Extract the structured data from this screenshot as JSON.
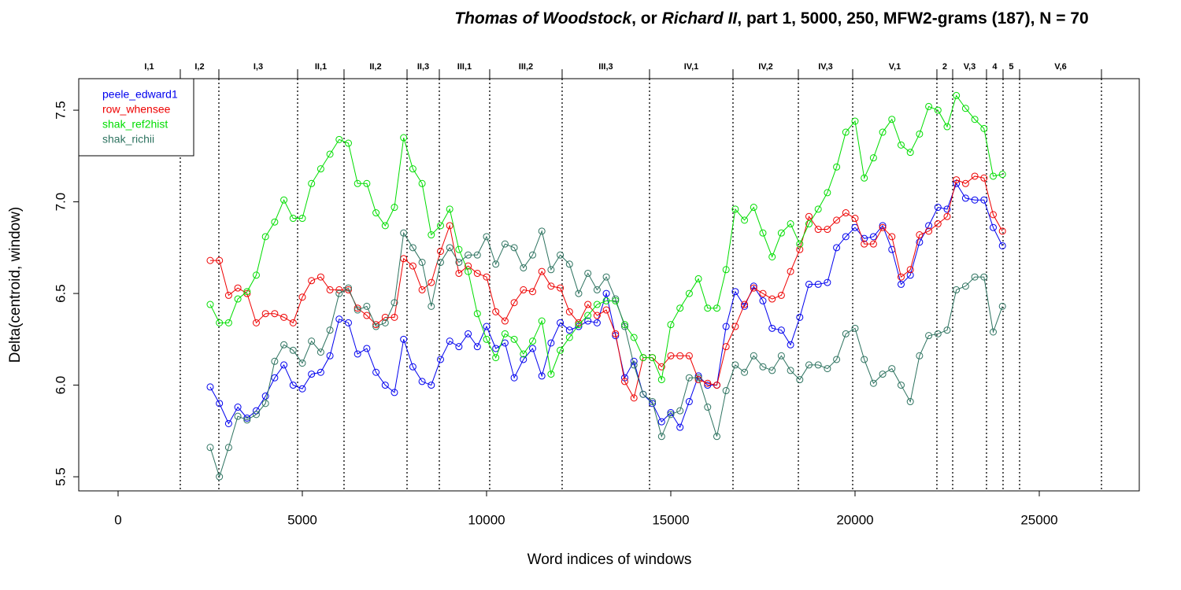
{
  "chart_data": {
    "type": "line",
    "title": [
      {
        "text": "Thomas of Woodstock",
        "italic": true
      },
      {
        "text": ", or ",
        "italic": false
      },
      {
        "text": "Richard II",
        "italic": true
      },
      {
        "text": ", part 1, 5000, 250, MFW2-grams (187), N = 70",
        "italic": false
      }
    ],
    "xlabel": "Word indices of windows",
    "ylabel": "Delta(centroid, window)",
    "xlim": [
      -1068,
      27714
    ],
    "ylim": [
      5.423,
      7.672
    ],
    "xticks": [
      0,
      5000,
      10000,
      15000,
      20000,
      25000
    ],
    "yticks": [
      5.5,
      {
        "value": 6,
        "label": "6.0"
      },
      6.5,
      {
        "value": 7,
        "label": "7.0"
      },
      7.5
    ],
    "legend": "top-left",
    "scenes": [
      {
        "label": "I,1",
        "end": 1688
      },
      {
        "label": "I,2",
        "end": 2735
      },
      {
        "label": "I,3",
        "end": 4872
      },
      {
        "label": "II,1",
        "end": 6132
      },
      {
        "label": "II,2",
        "end": 7842
      },
      {
        "label": "II,3",
        "end": 8718
      },
      {
        "label": "III,1",
        "end": 10085
      },
      {
        "label": "III,2",
        "end": 12051
      },
      {
        "label": "III,3",
        "end": 14423
      },
      {
        "label": "IV,1",
        "end": 16688
      },
      {
        "label": "IV,2",
        "end": 18462
      },
      {
        "label": "IV,3",
        "end": 19936
      },
      {
        "label": "V,1",
        "end": 22222
      },
      {
        "label": "2",
        "end": 22650
      },
      {
        "label": "V,3",
        "end": 23568
      },
      {
        "label": "4",
        "end": 24017
      },
      {
        "label": "5",
        "end": 24466
      },
      {
        "label": "V,6",
        "end": 26688
      }
    ],
    "x": [
      2500,
      2750,
      3000,
      3250,
      3500,
      3750,
      4000,
      4250,
      4500,
      4750,
      5000,
      5250,
      5500,
      5750,
      6000,
      6250,
      6500,
      6750,
      7000,
      7250,
      7500,
      7750,
      8000,
      8250,
      8500,
      8750,
      9000,
      9250,
      9500,
      9750,
      10000,
      10250,
      10500,
      10750,
      11000,
      11250,
      11500,
      11750,
      12000,
      12250,
      12500,
      12750,
      13000,
      13250,
      13500,
      13750,
      14000,
      14250,
      14500,
      14750,
      15000,
      15250,
      15500,
      15750,
      16000,
      16250,
      16500,
      16750,
      17000,
      17250,
      17500,
      17750,
      18000,
      18250,
      18500,
      18750,
      19000,
      19250,
      19500,
      19750,
      20000,
      20250,
      20500,
      20750,
      21000,
      21250,
      21500,
      21750,
      22000,
      22250,
      22500,
      22750,
      23000,
      23250,
      23500,
      23750,
      24000
    ],
    "series": [
      {
        "name": "peele_edward1",
        "color": "#0000ee",
        "values": [
          5.99,
          5.9,
          5.79,
          5.88,
          5.82,
          5.86,
          5.94,
          6.04,
          6.11,
          6.0,
          5.98,
          6.06,
          6.07,
          6.16,
          6.36,
          6.34,
          6.17,
          6.2,
          6.07,
          6.0,
          5.96,
          6.25,
          6.1,
          6.02,
          6.0,
          6.14,
          6.24,
          6.21,
          6.28,
          6.21,
          6.32,
          6.2,
          6.23,
          6.04,
          6.14,
          6.2,
          6.05,
          6.23,
          6.34,
          6.3,
          6.32,
          6.35,
          6.34,
          6.5,
          6.27,
          6.04,
          6.13,
          5.95,
          5.9,
          5.8,
          5.85,
          5.77,
          5.91,
          6.05,
          6.0,
          6.0,
          6.32,
          6.51,
          6.43,
          6.54,
          6.46,
          6.31,
          6.3,
          6.22,
          6.37,
          6.55,
          6.55,
          6.56,
          6.75,
          6.81,
          6.86,
          6.8,
          6.81,
          6.87,
          6.74,
          6.55,
          6.6,
          6.78,
          6.87,
          6.97,
          6.96,
          7.1,
          7.02,
          7.01,
          7.01,
          6.86,
          6.76
        ]
      },
      {
        "name": "row_whensee",
        "color": "#ee0000",
        "values": [
          6.68,
          6.68,
          6.49,
          6.53,
          6.5,
          6.34,
          6.39,
          6.39,
          6.37,
          6.34,
          6.48,
          6.57,
          6.59,
          6.52,
          6.52,
          6.52,
          6.42,
          6.38,
          6.33,
          6.37,
          6.37,
          6.69,
          6.65,
          6.52,
          6.56,
          6.73,
          6.87,
          6.61,
          6.65,
          6.61,
          6.59,
          6.4,
          6.35,
          6.45,
          6.52,
          6.51,
          6.62,
          6.54,
          6.53,
          6.4,
          6.34,
          6.44,
          6.38,
          6.41,
          6.28,
          6.02,
          5.93,
          6.15,
          6.15,
          6.1,
          6.16,
          6.16,
          6.16,
          6.03,
          6.01,
          6.0,
          6.21,
          6.32,
          6.44,
          6.53,
          6.5,
          6.47,
          6.49,
          6.62,
          6.74,
          6.92,
          6.85,
          6.85,
          6.9,
          6.94,
          6.91,
          6.77,
          6.77,
          6.86,
          6.81,
          6.59,
          6.63,
          6.82,
          6.84,
          6.88,
          6.92,
          7.12,
          7.1,
          7.14,
          7.13,
          6.93,
          6.84
        ]
      },
      {
        "name": "shak_ref2hist",
        "color": "#00dd00",
        "values": [
          6.44,
          6.34,
          6.34,
          6.47,
          6.51,
          6.6,
          6.81,
          6.89,
          7.01,
          6.91,
          6.91,
          7.1,
          7.18,
          7.26,
          7.34,
          7.32,
          7.1,
          7.1,
          6.94,
          6.87,
          6.97,
          7.35,
          7.18,
          7.1,
          6.82,
          6.87,
          6.96,
          6.74,
          6.62,
          6.39,
          6.25,
          6.15,
          6.28,
          6.25,
          6.17,
          6.24,
          6.35,
          6.06,
          6.19,
          6.26,
          6.33,
          6.38,
          6.44,
          6.46,
          6.46,
          6.33,
          6.26,
          6.15,
          6.15,
          6.03,
          6.33,
          6.42,
          6.5,
          6.58,
          6.42,
          6.42,
          6.63,
          6.96,
          6.9,
          6.97,
          6.83,
          6.7,
          6.83,
          6.88,
          6.77,
          6.88,
          6.96,
          7.05,
          7.19,
          7.38,
          7.44,
          7.13,
          7.24,
          7.38,
          7.45,
          7.31,
          7.27,
          7.37,
          7.52,
          7.5,
          7.41,
          7.58,
          7.51,
          7.45,
          7.4,
          7.14,
          7.15
        ]
      },
      {
        "name": "shak_richii",
        "color": "#2e7360",
        "values": [
          5.66,
          5.5,
          5.66,
          5.83,
          5.81,
          5.84,
          5.9,
          6.13,
          6.22,
          6.19,
          6.12,
          6.24,
          6.18,
          6.3,
          6.5,
          6.53,
          6.41,
          6.43,
          6.32,
          6.34,
          6.45,
          6.83,
          6.75,
          6.67,
          6.43,
          6.67,
          6.75,
          6.67,
          6.71,
          6.71,
          6.81,
          6.66,
          6.77,
          6.75,
          6.64,
          6.71,
          6.84,
          6.63,
          6.71,
          6.66,
          6.5,
          6.61,
          6.52,
          6.59,
          6.47,
          6.32,
          6.11,
          5.95,
          5.91,
          5.72,
          5.84,
          5.86,
          6.04,
          6.04,
          5.88,
          5.72,
          5.97,
          6.11,
          6.07,
          6.16,
          6.1,
          6.08,
          6.16,
          6.08,
          6.03,
          6.11,
          6.11,
          6.09,
          6.14,
          6.28,
          6.31,
          6.14,
          6.01,
          6.06,
          6.09,
          6.0,
          5.91,
          6.16,
          6.27,
          6.28,
          6.3,
          6.52,
          6.54,
          6.59,
          6.59,
          6.29,
          6.43
        ]
      }
    ]
  }
}
